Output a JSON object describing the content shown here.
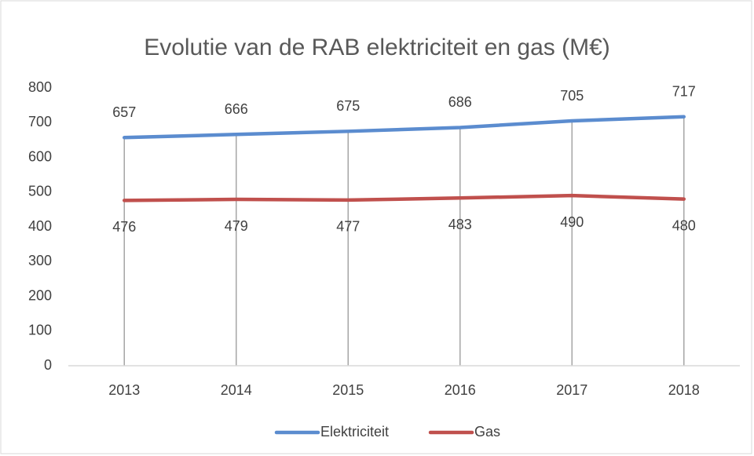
{
  "chart_data": {
    "type": "line",
    "title": "Evolutie van de RAB elektriciteit en gas (M€)",
    "categories": [
      "2013",
      "2014",
      "2015",
      "2016",
      "2017",
      "2018"
    ],
    "series": [
      {
        "name": "Elektriciteit",
        "color": "#5b8ccf",
        "values": [
          657,
          666,
          675,
          686,
          705,
          717
        ]
      },
      {
        "name": "Gas",
        "color": "#c0504d",
        "values": [
          476,
          479,
          477,
          483,
          490,
          480
        ]
      }
    ],
    "ylim": [
      0,
      800
    ],
    "yticks": [
      0,
      100,
      200,
      300,
      400,
      500,
      600,
      700,
      800
    ],
    "grid": false,
    "drop_lines": true,
    "legend": "bottom"
  }
}
